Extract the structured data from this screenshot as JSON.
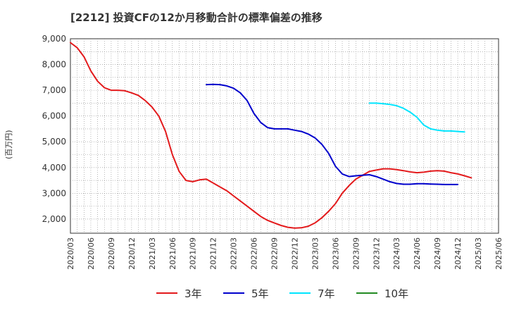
{
  "title": "[2212]  投資CFの12か月移動合計の標準偏差の推移",
  "ylabel": "(百万円)",
  "chart_data": {
    "type": "line",
    "ylim": [
      1450,
      9000
    ],
    "yticks": [
      2000,
      3000,
      4000,
      5000,
      6000,
      7000,
      8000,
      9000
    ],
    "ytick_labels": [
      "2,000",
      "3,000",
      "4,000",
      "5,000",
      "6,000",
      "7,000",
      "8,000",
      "9,000"
    ],
    "xticks": [
      "2020/03",
      "2020/06",
      "2020/09",
      "2020/12",
      "2021/03",
      "2021/06",
      "2021/09",
      "2021/12",
      "2022/03",
      "2022/06",
      "2022/09",
      "2022/12",
      "2023/03",
      "2023/06",
      "2023/09",
      "2023/12",
      "2024/03",
      "2024/06",
      "2024/09",
      "2024/12",
      "2025/03",
      "2025/06"
    ],
    "grid": true,
    "legend_position": "bottom",
    "series": [
      {
        "name": "3年",
        "color": "#e31a1c",
        "start": "2020/03",
        "values": [
          8850,
          8650,
          8300,
          7750,
          7350,
          7100,
          7000,
          7000,
          6980,
          6900,
          6800,
          6600,
          6350,
          6000,
          5400,
          4500,
          3850,
          3500,
          3450,
          3520,
          3550,
          3400,
          3250,
          3100,
          2900,
          2700,
          2500,
          2300,
          2100,
          1950,
          1850,
          1750,
          1680,
          1650,
          1660,
          1720,
          1850,
          2050,
          2300,
          2600,
          3000,
          3300,
          3550,
          3700,
          3850,
          3900,
          3950,
          3950,
          3920,
          3880,
          3830,
          3800,
          3820,
          3860,
          3880,
          3860,
          3800,
          3750,
          3680,
          3600
        ]
      },
      {
        "name": "5年",
        "color": "#0000cc",
        "start": "2021/11",
        "values": [
          7220,
          7230,
          7220,
          7170,
          7080,
          6900,
          6600,
          6100,
          5750,
          5550,
          5500,
          5500,
          5500,
          5450,
          5400,
          5300,
          5150,
          4900,
          4550,
          4050,
          3750,
          3650,
          3680,
          3700,
          3720,
          3650,
          3550,
          3450,
          3380,
          3350,
          3350,
          3370,
          3370,
          3360,
          3350,
          3340,
          3340,
          3340
        ]
      },
      {
        "name": "7年",
        "color": "#00e5ff",
        "start": "2023/11",
        "values": [
          6500,
          6500,
          6480,
          6450,
          6400,
          6300,
          6150,
          5950,
          5650,
          5500,
          5450,
          5420,
          5420,
          5400,
          5380
        ]
      },
      {
        "name": "10年",
        "color": "#228b22",
        "start": "2024/12",
        "values": []
      }
    ]
  }
}
